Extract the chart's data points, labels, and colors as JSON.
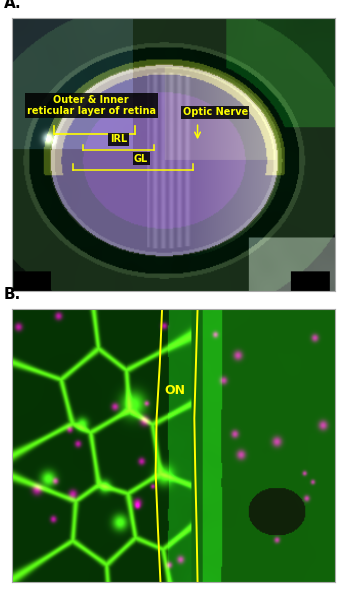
{
  "panel_A_label": "A.",
  "panel_B_label": "B.",
  "annotation_outer_inner": "Outer & Inner\nreticular layer of retina",
  "annotation_IRL": "IRL",
  "annotation_GL": "GL",
  "annotation_optic_nerve": "Optic Nerve",
  "annotation_ON": "ON",
  "label_color": "yellow",
  "panel_label_color": "black",
  "panel_label_fontsize": 11,
  "annotation_fontsize": 7,
  "background_color": "#ffffff",
  "fig_width": 3.45,
  "fig_height": 6.0,
  "dpi": 100
}
